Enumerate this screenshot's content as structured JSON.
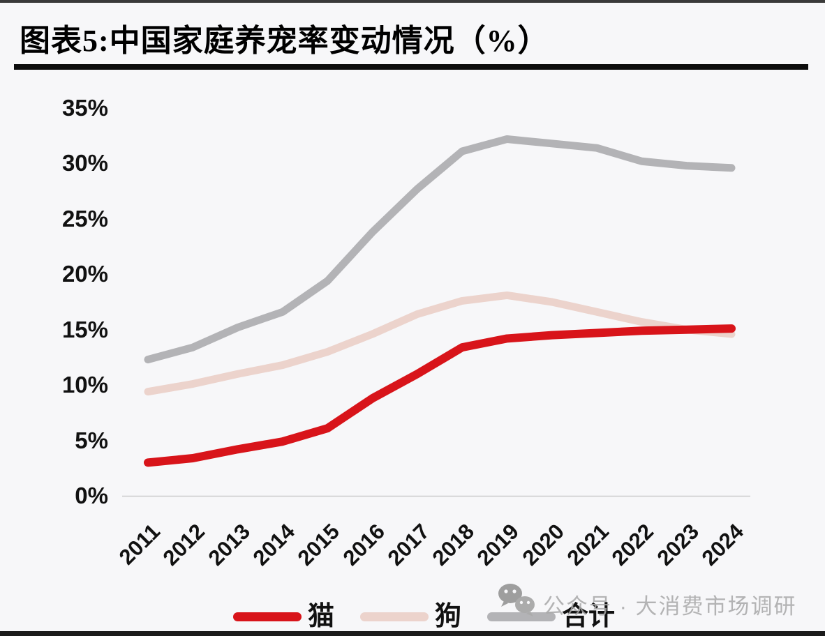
{
  "page": {
    "title": "图表5:中国家庭养宠率变动情况（%）"
  },
  "watermark": {
    "icon": "wechat-icon",
    "text": "公众号 · 大消费市场调研"
  },
  "chart_data": {
    "type": "line",
    "title": "图表5:中国家庭养宠率变动情况（%）",
    "unit": "%",
    "x": [
      2011,
      2012,
      2013,
      2014,
      2015,
      2016,
      2017,
      2018,
      2019,
      2020,
      2021,
      2022,
      2023,
      2024
    ],
    "ylim": [
      0,
      35
    ],
    "yticks": [
      0,
      5,
      10,
      15,
      20,
      25,
      30,
      35
    ],
    "grid": false,
    "legend_position": "bottom",
    "series": [
      {
        "key": "cat",
        "name": "猫",
        "color": "#d8141a",
        "stroke_width": 12,
        "values": [
          3.0,
          3.4,
          4.2,
          4.9,
          6.1,
          8.8,
          11.0,
          13.4,
          14.2,
          14.5,
          14.7,
          14.9,
          15.0,
          15.1
        ]
      },
      {
        "key": "dog",
        "name": "狗",
        "color": "#ecd3cc",
        "stroke_width": 11,
        "values": [
          9.4,
          10.1,
          11.0,
          11.8,
          13.0,
          14.6,
          16.4,
          17.6,
          18.1,
          17.5,
          16.6,
          15.7,
          15.0,
          14.6
        ]
      },
      {
        "key": "total",
        "name": "合计",
        "color": "#b3b3b6",
        "stroke_width": 11,
        "values": [
          12.3,
          13.4,
          15.2,
          16.6,
          19.4,
          23.8,
          27.7,
          31.1,
          32.2,
          31.8,
          31.4,
          30.2,
          29.8,
          29.6
        ]
      }
    ]
  }
}
